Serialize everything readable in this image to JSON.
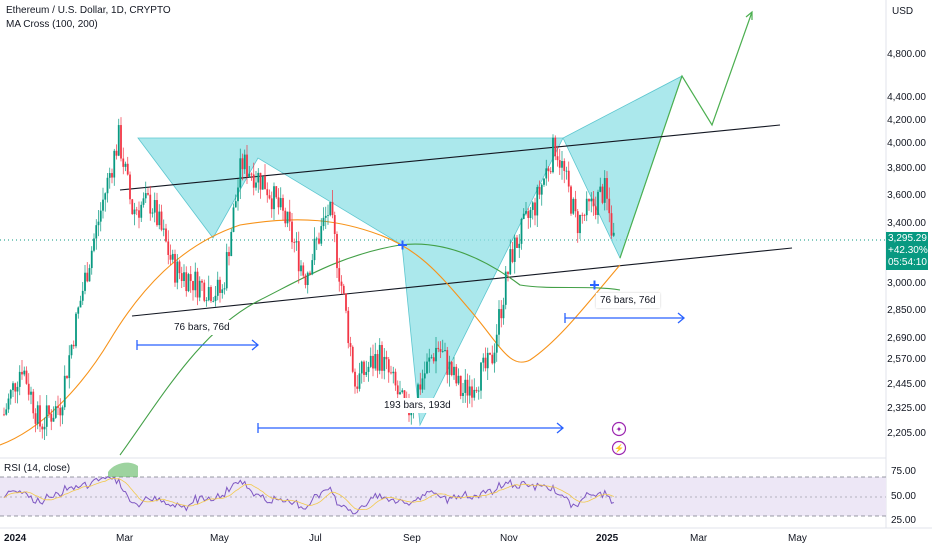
{
  "header": {
    "symbol_title": "Ethereum / U.S. Dollar, 1D, CRYPTO",
    "indicator": "MA Cross (100, 200)"
  },
  "currency": "USD",
  "price_box": {
    "price": "3,295.29",
    "change": "+42.30%",
    "countdown": "05:54:10"
  },
  "rsi": {
    "label": "RSI (14, close)",
    "levels": [
      "75.00",
      "50.00",
      "25.00"
    ]
  },
  "annotations": {
    "left_measure": "76 bars, 76d",
    "middle_measure": "193 bars, 193d",
    "right_measure": "76 bars, 76d"
  },
  "colors": {
    "bull": "#089981",
    "bear": "#f23645",
    "pattern_fill": "#8fe0e6",
    "ma100": "#f7931a",
    "ma200": "#43a047",
    "arrow": "#2962ff",
    "rsi_line": "#7e57c2",
    "rsi_band": "#ede7f6",
    "projection": "#4caf50"
  },
  "chart_data": {
    "type": "candlestick",
    "title": "Ethereum / U.S. Dollar, 1D, CRYPTO",
    "xlabel": "",
    "ylabel": "USD",
    "x_ticks": [
      "2024",
      "Mar",
      "May",
      "Jul",
      "Sep",
      "Nov",
      "2025",
      "Mar",
      "May"
    ],
    "y_ticks": [
      "4,800.00",
      "4,400.00",
      "4,200.00",
      "4,000.00",
      "3,800.00",
      "3,600.00",
      "3,400.00",
      "3,000.00",
      "2,850.00",
      "2,690.00",
      "2,570.00",
      "2,445.00",
      "2,325.00",
      "2,205.00"
    ],
    "y_scale": "log",
    "ylim": [
      2150,
      5300
    ],
    "close_series": [
      {
        "date": "2024-01-01",
        "close": 2300
      },
      {
        "date": "2024-01-12",
        "close": 2550
      },
      {
        "date": "2024-01-23",
        "close": 2250
      },
      {
        "date": "2024-02-05",
        "close": 2350
      },
      {
        "date": "2024-02-15",
        "close": 2800
      },
      {
        "date": "2024-02-28",
        "close": 3400
      },
      {
        "date": "2024-03-12",
        "close": 4050
      },
      {
        "date": "2024-03-20",
        "close": 3500
      },
      {
        "date": "2024-04-01",
        "close": 3550
      },
      {
        "date": "2024-04-15",
        "close": 3100
      },
      {
        "date": "2024-05-01",
        "close": 3000
      },
      {
        "date": "2024-05-15",
        "close": 2950
      },
      {
        "date": "2024-05-27",
        "close": 3850
      },
      {
        "date": "2024-06-10",
        "close": 3700
      },
      {
        "date": "2024-06-24",
        "close": 3400
      },
      {
        "date": "2024-07-05",
        "close": 3050
      },
      {
        "date": "2024-07-20",
        "close": 3500
      },
      {
        "date": "2024-08-05",
        "close": 2450
      },
      {
        "date": "2024-08-20",
        "close": 2600
      },
      {
        "date": "2024-09-06",
        "close": 2300
      },
      {
        "date": "2024-09-25",
        "close": 2650
      },
      {
        "date": "2024-10-10",
        "close": 2400
      },
      {
        "date": "2024-10-28",
        "close": 2550
      },
      {
        "date": "2024-11-10",
        "close": 3200
      },
      {
        "date": "2024-11-25",
        "close": 3550
      },
      {
        "date": "2024-12-07",
        "close": 4000
      },
      {
        "date": "2024-12-20",
        "close": 3400
      },
      {
        "date": "2025-01-01",
        "close": 3550
      },
      {
        "date": "2025-01-06",
        "close": 3650
      },
      {
        "date": "2025-01-12",
        "close": 3295
      }
    ],
    "series": [
      {
        "name": "MA 100",
        "color": "#f7931a"
      },
      {
        "name": "MA 200",
        "color": "#43a047"
      }
    ],
    "annotations": [
      "76 bars, 76d",
      "193 bars, 193d",
      "76 bars, 76d"
    ],
    "pattern": "butterfly harmonic overlay with ascending trend channel and projected breakout path to ~5,200"
  }
}
